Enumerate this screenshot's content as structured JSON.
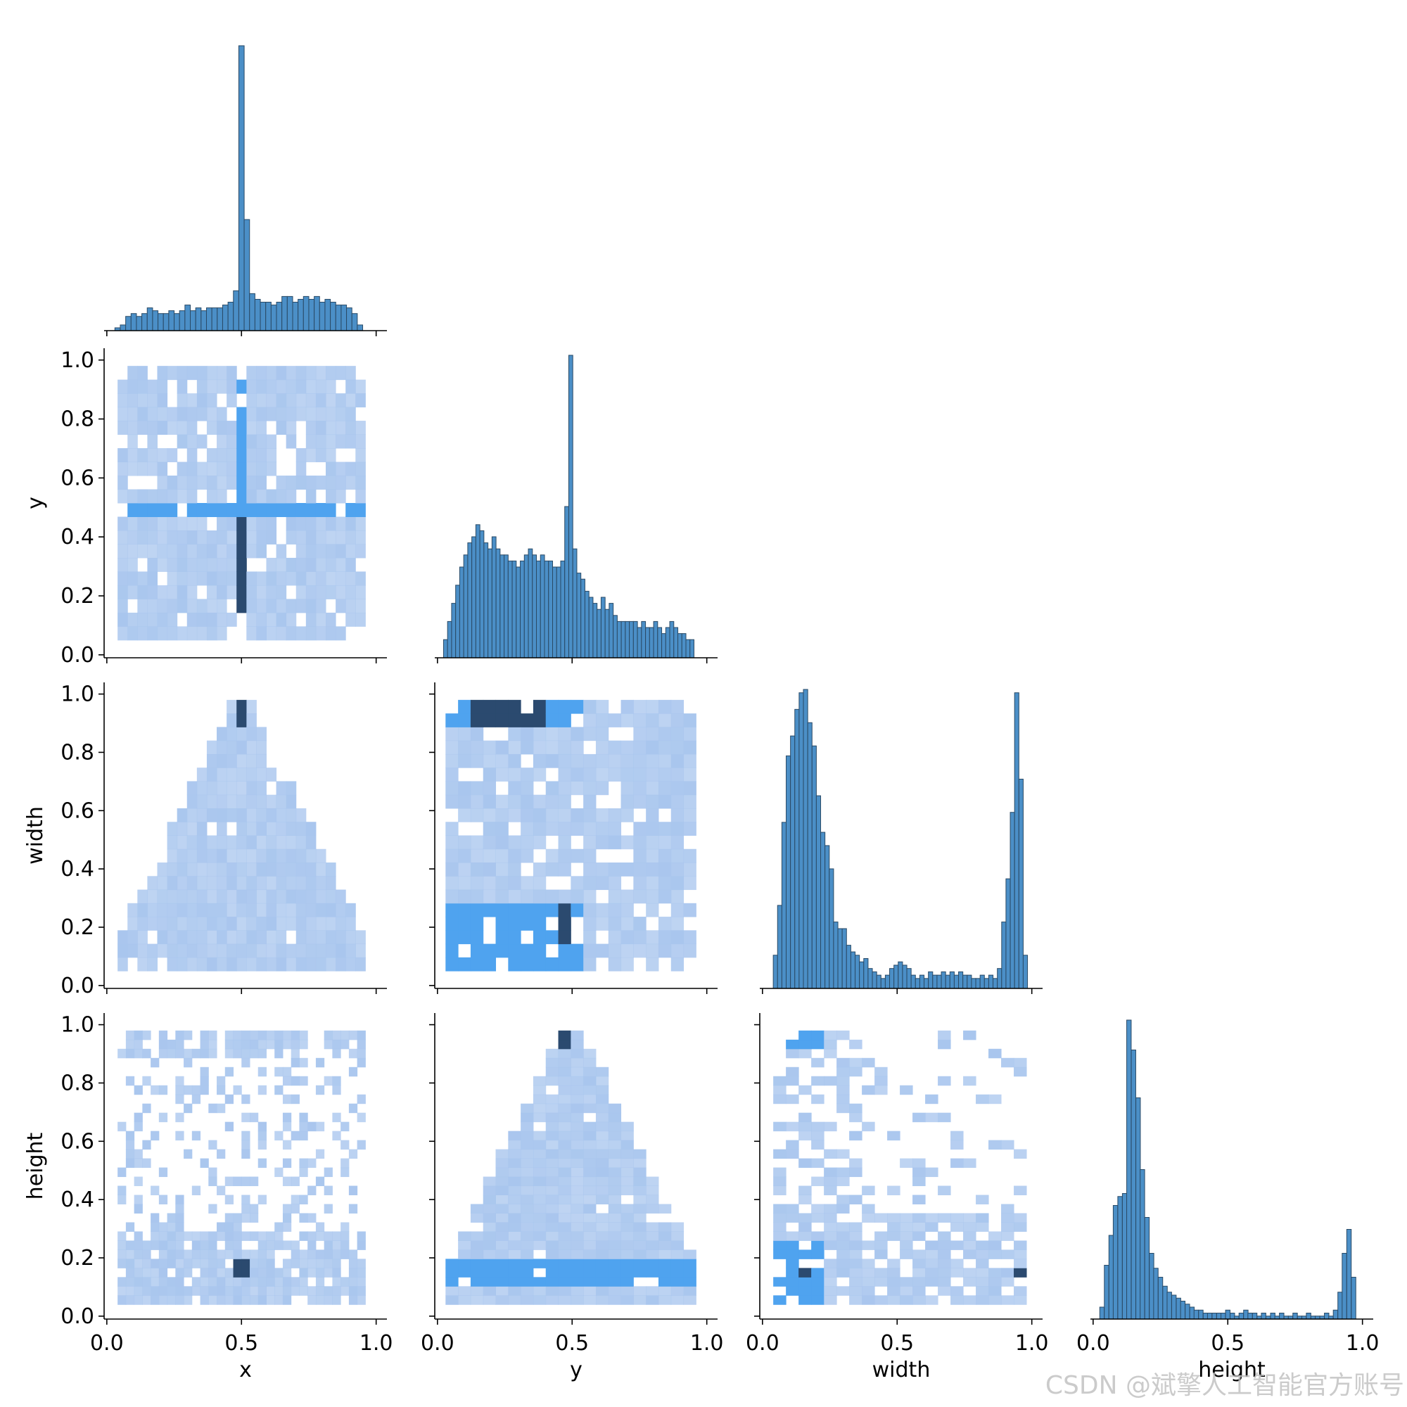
{
  "watermark": "CSDN @斌擎人工智能官方账号",
  "chart_data": {
    "type": "pairplot",
    "variables": [
      "x",
      "y",
      "width",
      "height"
    ],
    "colors": {
      "bar_fill": "#4b8fc7",
      "bar_edge": "#2a4a66",
      "hist2d_light": "#a9c6ee",
      "hist2d_mid": "#4fa3ef",
      "hist2d_dark": "#2b4a6f"
    },
    "axis_range": [
      0.0,
      1.0
    ],
    "x_ticks": [
      "0.0",
      "0.5",
      "1.0"
    ],
    "y_ticks": [
      "0.0",
      "0.2",
      "0.4",
      "0.6",
      "0.8",
      "1.0"
    ],
    "layout": "corner",
    "grid": false,
    "diagonal": [
      {
        "variable": "x",
        "bin_width": 0.02,
        "bins": [
          [
            0.04,
            1
          ],
          [
            0.06,
            2
          ],
          [
            0.08,
            5
          ],
          [
            0.1,
            6
          ],
          [
            0.12,
            5
          ],
          [
            0.14,
            6
          ],
          [
            0.16,
            8
          ],
          [
            0.18,
            7
          ],
          [
            0.2,
            6
          ],
          [
            0.22,
            6
          ],
          [
            0.24,
            7
          ],
          [
            0.26,
            6
          ],
          [
            0.28,
            7
          ],
          [
            0.3,
            9
          ],
          [
            0.32,
            7
          ],
          [
            0.34,
            8
          ],
          [
            0.36,
            7
          ],
          [
            0.38,
            8
          ],
          [
            0.4,
            8
          ],
          [
            0.42,
            8
          ],
          [
            0.44,
            9
          ],
          [
            0.46,
            10
          ],
          [
            0.48,
            14
          ],
          [
            0.5,
            100
          ],
          [
            0.52,
            39
          ],
          [
            0.54,
            13
          ],
          [
            0.56,
            11
          ],
          [
            0.58,
            10
          ],
          [
            0.6,
            10
          ],
          [
            0.62,
            9
          ],
          [
            0.64,
            10
          ],
          [
            0.66,
            12
          ],
          [
            0.68,
            12
          ],
          [
            0.7,
            10
          ],
          [
            0.72,
            11
          ],
          [
            0.74,
            12
          ],
          [
            0.76,
            11
          ],
          [
            0.78,
            12
          ],
          [
            0.8,
            10
          ],
          [
            0.82,
            11
          ],
          [
            0.84,
            10
          ],
          [
            0.86,
            9
          ],
          [
            0.88,
            9
          ],
          [
            0.9,
            8
          ],
          [
            0.92,
            6
          ],
          [
            0.94,
            2
          ]
        ]
      },
      {
        "variable": "y",
        "bin_width": 0.015,
        "bins": [
          [
            0.03,
            3
          ],
          [
            0.045,
            6
          ],
          [
            0.06,
            9
          ],
          [
            0.075,
            12
          ],
          [
            0.09,
            15
          ],
          [
            0.105,
            17
          ],
          [
            0.12,
            19
          ],
          [
            0.135,
            20
          ],
          [
            0.15,
            22
          ],
          [
            0.165,
            21
          ],
          [
            0.18,
            19
          ],
          [
            0.195,
            18
          ],
          [
            0.21,
            20
          ],
          [
            0.225,
            18
          ],
          [
            0.24,
            17
          ],
          [
            0.255,
            17
          ],
          [
            0.27,
            16
          ],
          [
            0.285,
            16
          ],
          [
            0.3,
            15
          ],
          [
            0.315,
            16
          ],
          [
            0.33,
            17
          ],
          [
            0.345,
            18
          ],
          [
            0.36,
            17
          ],
          [
            0.375,
            16
          ],
          [
            0.39,
            17
          ],
          [
            0.405,
            16
          ],
          [
            0.42,
            16
          ],
          [
            0.435,
            15
          ],
          [
            0.45,
            15
          ],
          [
            0.465,
            16
          ],
          [
            0.48,
            25
          ],
          [
            0.495,
            50
          ],
          [
            0.51,
            18
          ],
          [
            0.525,
            14
          ],
          [
            0.54,
            13
          ],
          [
            0.555,
            11
          ],
          [
            0.57,
            10
          ],
          [
            0.585,
            9
          ],
          [
            0.6,
            8
          ],
          [
            0.615,
            10
          ],
          [
            0.63,
            8
          ],
          [
            0.645,
            9
          ],
          [
            0.66,
            7
          ],
          [
            0.675,
            6
          ],
          [
            0.69,
            6
          ],
          [
            0.705,
            6
          ],
          [
            0.72,
            6
          ],
          [
            0.735,
            6
          ],
          [
            0.75,
            5
          ],
          [
            0.765,
            6
          ],
          [
            0.78,
            5
          ],
          [
            0.795,
            5
          ],
          [
            0.81,
            6
          ],
          [
            0.825,
            5
          ],
          [
            0.84,
            4
          ],
          [
            0.855,
            5
          ],
          [
            0.87,
            6
          ],
          [
            0.885,
            5
          ],
          [
            0.9,
            4
          ],
          [
            0.915,
            4
          ],
          [
            0.93,
            3
          ],
          [
            0.945,
            3
          ]
        ]
      },
      {
        "variable": "width",
        "bin_width": 0.016,
        "bins": [
          [
            0.048,
            10
          ],
          [
            0.064,
            25
          ],
          [
            0.08,
            50
          ],
          [
            0.096,
            70
          ],
          [
            0.112,
            76
          ],
          [
            0.128,
            84
          ],
          [
            0.144,
            89
          ],
          [
            0.16,
            90
          ],
          [
            0.176,
            80
          ],
          [
            0.192,
            73
          ],
          [
            0.208,
            58
          ],
          [
            0.224,
            47
          ],
          [
            0.24,
            43
          ],
          [
            0.256,
            36
          ],
          [
            0.272,
            20
          ],
          [
            0.288,
            18
          ],
          [
            0.304,
            18
          ],
          [
            0.32,
            13
          ],
          [
            0.336,
            11
          ],
          [
            0.352,
            10
          ],
          [
            0.368,
            8
          ],
          [
            0.384,
            9
          ],
          [
            0.4,
            6
          ],
          [
            0.416,
            5
          ],
          [
            0.432,
            4
          ],
          [
            0.448,
            3
          ],
          [
            0.464,
            4
          ],
          [
            0.48,
            6
          ],
          [
            0.496,
            7
          ],
          [
            0.512,
            8
          ],
          [
            0.528,
            7
          ],
          [
            0.544,
            6
          ],
          [
            0.56,
            4
          ],
          [
            0.576,
            3
          ],
          [
            0.592,
            4
          ],
          [
            0.608,
            3
          ],
          [
            0.624,
            5
          ],
          [
            0.64,
            4
          ],
          [
            0.656,
            4
          ],
          [
            0.672,
            5
          ],
          [
            0.688,
            4
          ],
          [
            0.704,
            5
          ],
          [
            0.72,
            4
          ],
          [
            0.736,
            5
          ],
          [
            0.752,
            4
          ],
          [
            0.768,
            4
          ],
          [
            0.784,
            3
          ],
          [
            0.8,
            3
          ],
          [
            0.816,
            4
          ],
          [
            0.832,
            3
          ],
          [
            0.848,
            4
          ],
          [
            0.864,
            3
          ],
          [
            0.88,
            6
          ],
          [
            0.896,
            20
          ],
          [
            0.912,
            33
          ],
          [
            0.928,
            53
          ],
          [
            0.944,
            89
          ],
          [
            0.96,
            63
          ],
          [
            0.976,
            10
          ]
        ]
      },
      {
        "variable": "height",
        "bin_width": 0.0167,
        "bins": [
          [
            0.033,
            4
          ],
          [
            0.05,
            18
          ],
          [
            0.067,
            28
          ],
          [
            0.083,
            38
          ],
          [
            0.1,
            41
          ],
          [
            0.117,
            42
          ],
          [
            0.133,
            100
          ],
          [
            0.15,
            90
          ],
          [
            0.167,
            74
          ],
          [
            0.183,
            50
          ],
          [
            0.2,
            34
          ],
          [
            0.217,
            22
          ],
          [
            0.233,
            17
          ],
          [
            0.25,
            14
          ],
          [
            0.267,
            11
          ],
          [
            0.283,
            9
          ],
          [
            0.3,
            8
          ],
          [
            0.317,
            7
          ],
          [
            0.333,
            6
          ],
          [
            0.35,
            5
          ],
          [
            0.367,
            4
          ],
          [
            0.383,
            3
          ],
          [
            0.4,
            3
          ],
          [
            0.417,
            2
          ],
          [
            0.433,
            2
          ],
          [
            0.45,
            2
          ],
          [
            0.467,
            2
          ],
          [
            0.483,
            2
          ],
          [
            0.5,
            3
          ],
          [
            0.517,
            2
          ],
          [
            0.533,
            1
          ],
          [
            0.55,
            2
          ],
          [
            0.567,
            3
          ],
          [
            0.583,
            2
          ],
          [
            0.6,
            2
          ],
          [
            0.617,
            1
          ],
          [
            0.633,
            2
          ],
          [
            0.65,
            1
          ],
          [
            0.667,
            2
          ],
          [
            0.683,
            1
          ],
          [
            0.7,
            2
          ],
          [
            0.717,
            1
          ],
          [
            0.733,
            1
          ],
          [
            0.75,
            2
          ],
          [
            0.767,
            1
          ],
          [
            0.783,
            1
          ],
          [
            0.8,
            2
          ],
          [
            0.817,
            1
          ],
          [
            0.833,
            1
          ],
          [
            0.85,
            1
          ],
          [
            0.867,
            2
          ],
          [
            0.883,
            1
          ],
          [
            0.9,
            3
          ],
          [
            0.917,
            9
          ],
          [
            0.933,
            22
          ],
          [
            0.95,
            30
          ],
          [
            0.967,
            14
          ]
        ]
      }
    ],
    "hist2d": [
      {
        "x_var": "x",
        "y_var": "y",
        "x_range": [
          0.04,
          0.96
        ],
        "y_range": [
          0.05,
          0.98
        ],
        "nx": 25,
        "ny": 20,
        "hot_cells": [
          {
            "x": 0.5,
            "y": [
              0.06,
              0.95
            ],
            "level": 2
          },
          {
            "x": 0.5,
            "y": [
              0.12,
              0.45
            ],
            "level": 3
          },
          {
            "x": [
              0.04,
              0.96
            ],
            "y": 0.5,
            "level": 2
          }
        ]
      },
      {
        "x_var": "x",
        "y_var": "width",
        "x_range": [
          0.04,
          0.96
        ],
        "y_range": [
          0.05,
          0.98
        ],
        "nx": 25,
        "ny": 20,
        "shape": "triangle",
        "hot_cells": [
          {
            "x": 0.5,
            "y": [
              0.91,
              0.98
            ],
            "level": 3
          }
        ]
      },
      {
        "x_var": "y",
        "y_var": "width",
        "x_range": [
          0.03,
          0.96
        ],
        "y_range": [
          0.05,
          0.98
        ],
        "nx": 20,
        "ny": 20,
        "hot_cells": [
          {
            "x": [
              0.03,
              0.55
            ],
            "y": [
              0.91,
              0.98
            ],
            "level": 2
          },
          {
            "x": [
              0.12,
              0.4
            ],
            "y": [
              0.91,
              0.98
            ],
            "level": 3
          },
          {
            "x": [
              0.03,
              0.55
            ],
            "y": [
              0.05,
              0.28
            ],
            "level": 2
          },
          {
            "x": 0.49,
            "y": [
              0.12,
              0.28
            ],
            "level": 3
          }
        ]
      },
      {
        "x_var": "x",
        "y_var": "height",
        "x_range": [
          0.04,
          0.96
        ],
        "y_range": [
          0.04,
          0.98
        ],
        "nx": 30,
        "ny": 30,
        "hot_cells": [
          {
            "x": 0.5,
            "y": [
              0.12,
              0.2
            ],
            "level": 3
          }
        ]
      },
      {
        "x_var": "y",
        "y_var": "height",
        "x_range": [
          0.03,
          0.96
        ],
        "y_range": [
          0.04,
          0.98
        ],
        "nx": 20,
        "ny": 30,
        "shape": "triangle",
        "hot_cells": [
          {
            "x": 0.49,
            "y": [
              0.91,
              0.98
            ],
            "level": 3
          },
          {
            "x": [
              0.03,
              0.96
            ],
            "y": [
              0.1,
              0.2
            ],
            "level": 2
          }
        ]
      },
      {
        "x_var": "width",
        "y_var": "height",
        "x_range": [
          0.04,
          0.98
        ],
        "y_range": [
          0.04,
          0.98
        ],
        "nx": 20,
        "ny": 30,
        "hot_cells": [
          {
            "x": [
              0.04,
              0.25
            ],
            "y": [
              0.92,
              0.98
            ],
            "level": 2
          },
          {
            "x": [
              0.04,
              0.25
            ],
            "y": [
              0.05,
              0.25
            ],
            "level": 2
          },
          {
            "x": 0.15,
            "y": [
              0.14,
              0.18
            ],
            "level": 3
          },
          {
            "x": 0.08,
            "y": [
              0.06,
              0.1
            ],
            "level": 3
          },
          {
            "x": 0.95,
            "y": [
              0.12,
              0.18
            ],
            "level": 3
          }
        ]
      }
    ]
  }
}
